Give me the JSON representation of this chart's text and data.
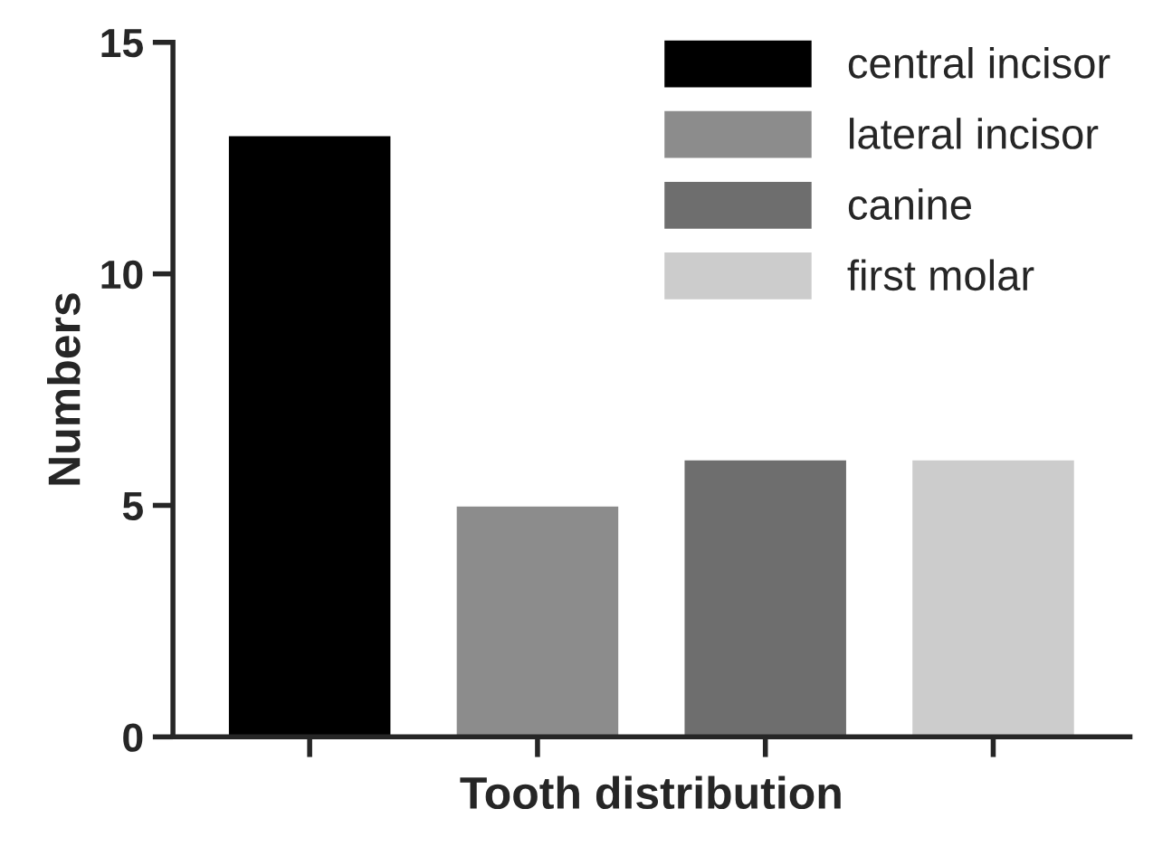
{
  "chart_data": {
    "type": "bar",
    "xlabel": "Tooth distribution",
    "ylabel": "Numbers",
    "categories": [
      null,
      null,
      null,
      null
    ],
    "series": [
      {
        "name": "central incisor",
        "color": "#000000",
        "values": [
          13,
          null,
          null,
          null
        ]
      },
      {
        "name": "lateral incisor",
        "color": "#8c8c8c",
        "values": [
          null,
          5,
          null,
          null
        ]
      },
      {
        "name": "canine",
        "color": "#6e6e6e",
        "values": [
          null,
          null,
          6,
          null
        ]
      },
      {
        "name": "first molar",
        "color": "#cccccc",
        "values": [
          null,
          null,
          null,
          6
        ]
      }
    ],
    "ylim": [
      0,
      15
    ],
    "yticks": [
      0,
      5,
      10,
      15
    ],
    "grid": false,
    "legend": "top right"
  }
}
